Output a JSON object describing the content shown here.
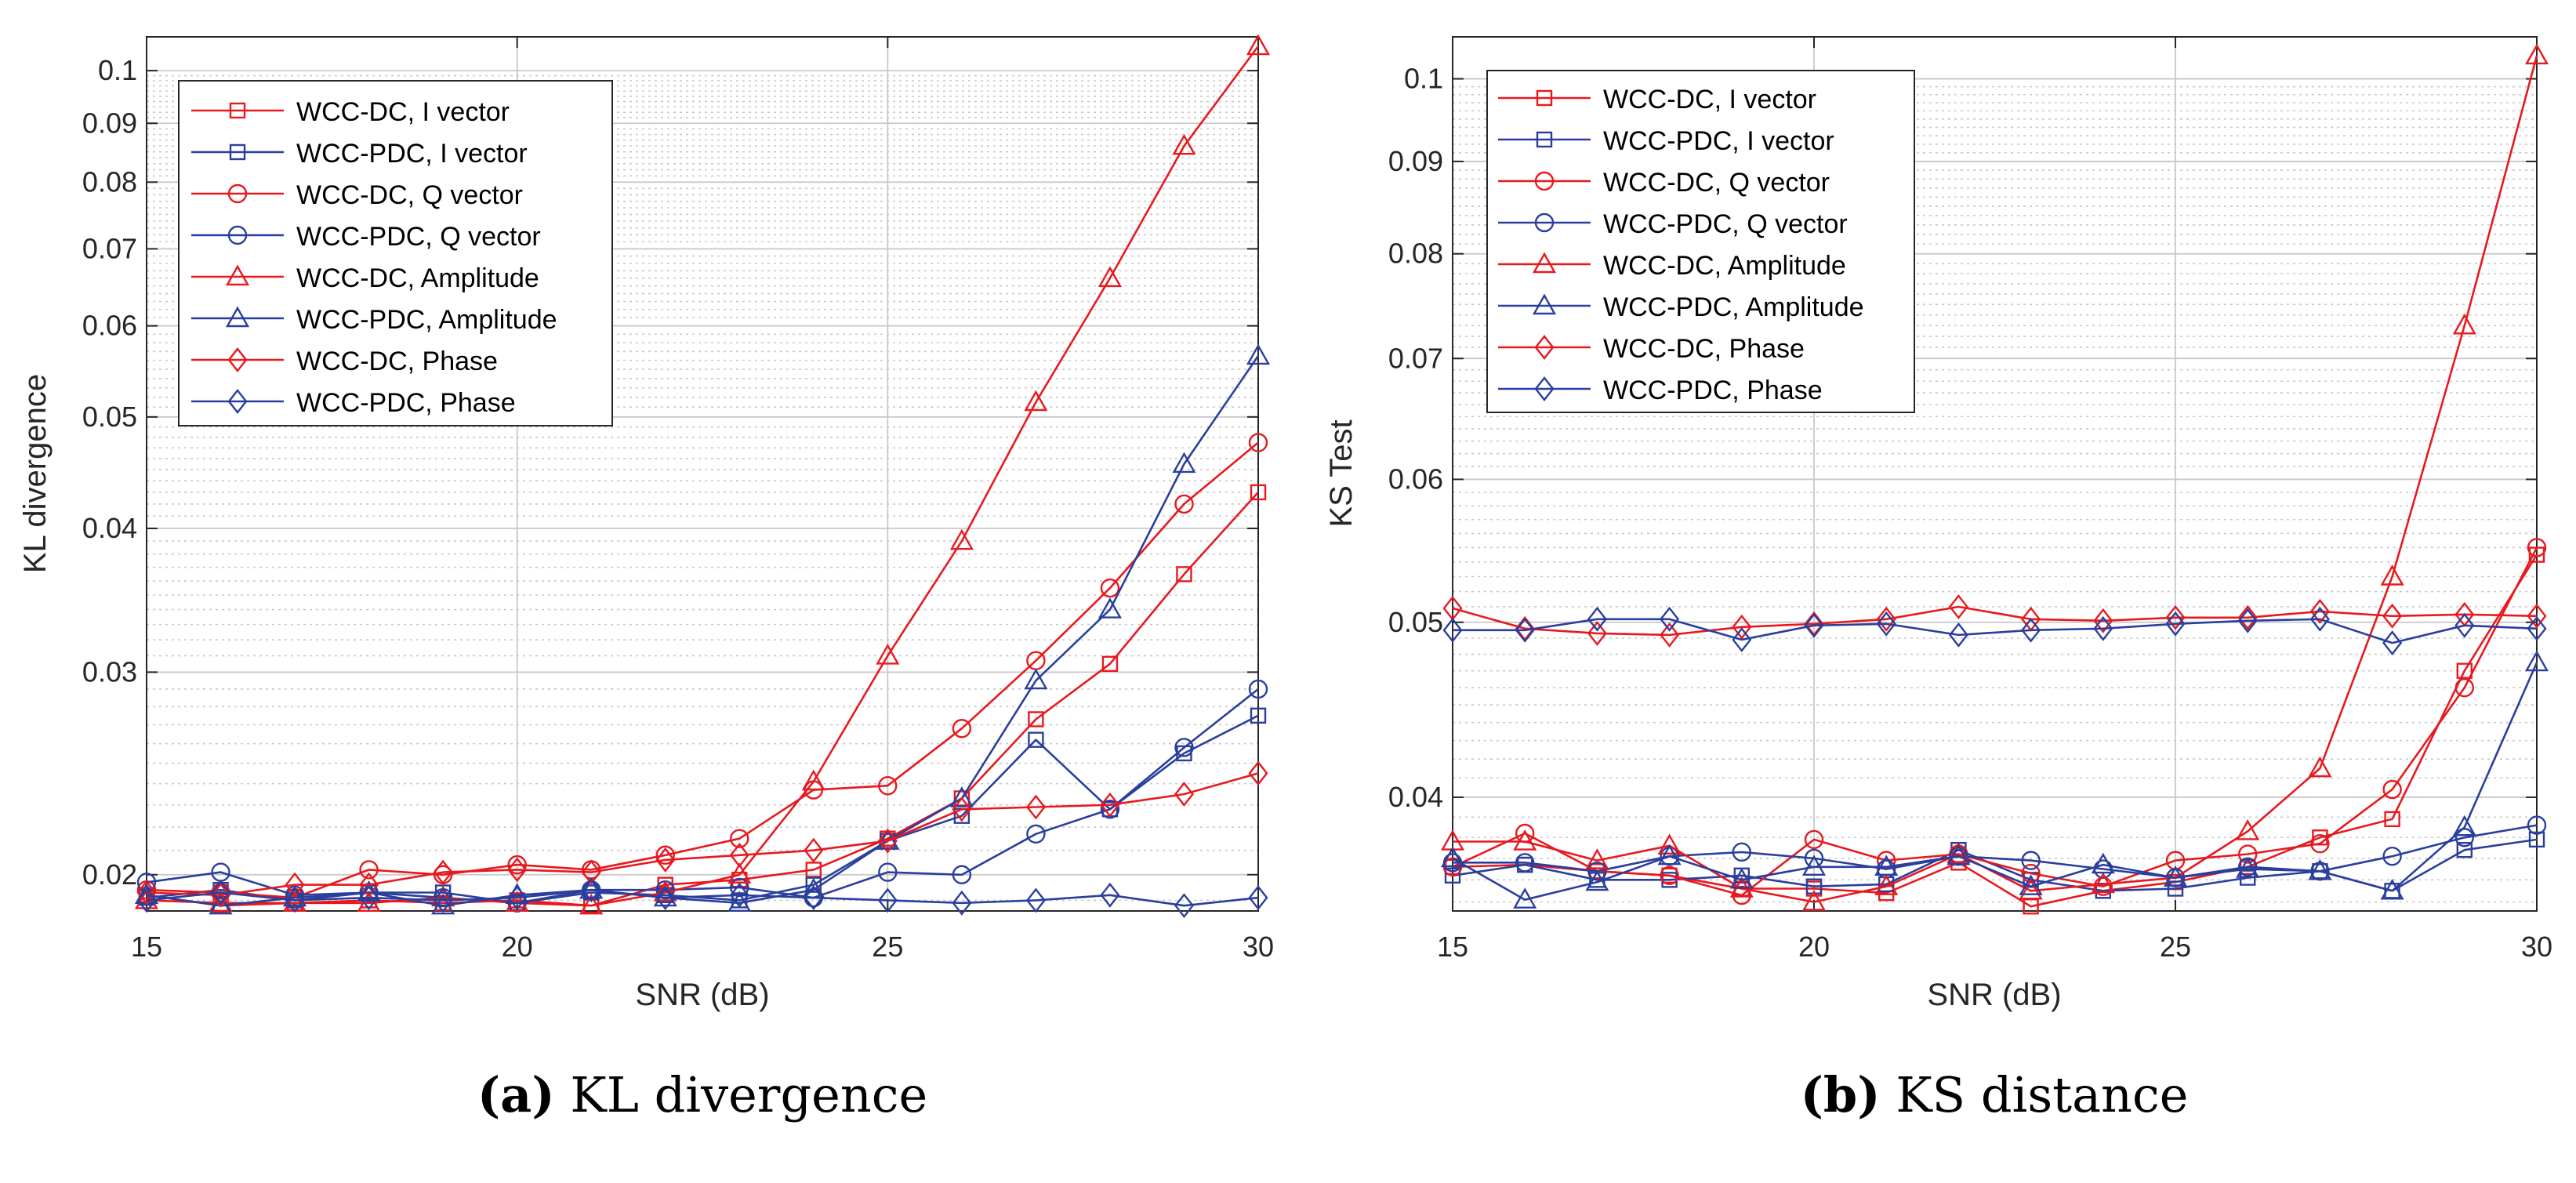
{
  "colors": {
    "dc": "#e8191e",
    "pdc": "#2a3f9d",
    "grid": "#c8c8c8",
    "axis": "#262626"
  },
  "chart_data": [
    {
      "type": "line",
      "id": "kl",
      "yscale": "log",
      "xlabel": "SNR (dB)",
      "ylabel": "KL divergence",
      "xlim": [
        15,
        30
      ],
      "ylim": [
        0.0186,
        0.107
      ],
      "xticks": [
        15,
        20,
        25,
        30
      ],
      "yticks": [
        0.02,
        0.03,
        0.04,
        0.05,
        0.06,
        0.07,
        0.08,
        0.09,
        0.1
      ],
      "ytick_labels": [
        "0.02",
        "0.03",
        "0.04",
        "0.05",
        "0.06",
        "0.07",
        "0.08",
        "0.09",
        "0.1"
      ],
      "legend_position": "top-left",
      "caption_letter": "(a)",
      "caption_text": "KL divergence",
      "x": [
        15,
        16,
        17,
        18,
        19,
        20,
        21,
        22,
        23,
        24,
        25,
        26,
        27,
        28,
        29,
        30
      ],
      "series": [
        {
          "name": "WCC-DC, I vector",
          "color": "dc",
          "marker": "square",
          "values": [
            0.0192,
            0.0188,
            0.0189,
            0.019,
            0.0189,
            0.019,
            0.0188,
            0.0196,
            0.0198,
            0.0202,
            0.0215,
            0.0233,
            0.0273,
            0.0305,
            0.0365,
            0.043
          ]
        },
        {
          "name": "WCC-PDC, I vector",
          "color": "pdc",
          "marker": "square",
          "values": [
            0.0191,
            0.0194,
            0.019,
            0.0193,
            0.0193,
            0.0189,
            0.0193,
            0.0192,
            0.019,
            0.0196,
            0.0214,
            0.0225,
            0.0262,
            0.0228,
            0.0255,
            0.0275
          ]
        },
        {
          "name": "WCC-DC, Q vector",
          "color": "dc",
          "marker": "circle",
          "values": [
            0.0194,
            0.0193,
            0.0191,
            0.0202,
            0.02,
            0.0204,
            0.0202,
            0.0208,
            0.0215,
            0.0237,
            0.0239,
            0.0268,
            0.0307,
            0.0355,
            0.042,
            0.0475
          ]
        },
        {
          "name": "WCC-PDC, Q vector",
          "color": "pdc",
          "marker": "circle",
          "values": [
            0.0197,
            0.0201,
            0.0192,
            0.0193,
            0.0191,
            0.0189,
            0.0194,
            0.0194,
            0.0195,
            0.0191,
            0.0201,
            0.02,
            0.0217,
            0.0228,
            0.0258,
            0.029
          ]
        },
        {
          "name": "WCC-DC, Amplitude",
          "color": "dc",
          "marker": "triangle",
          "values": [
            0.019,
            0.0189,
            0.0189,
            0.0189,
            0.0191,
            0.0189,
            0.0188,
            0.0193,
            0.02,
            0.0241,
            0.031,
            0.039,
            0.0515,
            0.066,
            0.086,
            0.105
          ]
        },
        {
          "name": "WCC-PDC, Amplitude",
          "color": "pdc",
          "marker": "triangle",
          "values": [
            0.0192,
            0.0188,
            0.0191,
            0.0193,
            0.0188,
            0.0192,
            0.0194,
            0.0191,
            0.0189,
            0.0194,
            0.0214,
            0.0233,
            0.0295,
            0.034,
            0.0455,
            0.0565
          ]
        },
        {
          "name": "WCC-DC, Phase",
          "color": "dc",
          "marker": "diamond",
          "values": [
            0.0193,
            0.0192,
            0.0196,
            0.0196,
            0.0201,
            0.0202,
            0.0201,
            0.0206,
            0.0208,
            0.021,
            0.0214,
            0.0228,
            0.0229,
            0.023,
            0.0235,
            0.0245
          ]
        },
        {
          "name": "WCC-PDC, Phase",
          "color": "pdc",
          "marker": "diamond",
          "values": [
            0.019,
            0.0193,
            0.019,
            0.0191,
            0.019,
            0.0191,
            0.0194,
            0.0191,
            0.0192,
            0.0191,
            0.019,
            0.0189,
            0.019,
            0.0192,
            0.0188,
            0.0191
          ]
        }
      ]
    },
    {
      "type": "line",
      "id": "ks",
      "yscale": "log",
      "xlabel": "SNR (dB)",
      "ylabel": "KS Test",
      "xlim": [
        15,
        30
      ],
      "ylim": [
        0.0346,
        0.1055
      ],
      "xticks": [
        15,
        20,
        25,
        30
      ],
      "yticks": [
        0.04,
        0.05,
        0.06,
        0.07,
        0.08,
        0.09,
        0.1
      ],
      "ytick_labels": [
        "0.04",
        "0.05",
        "0.06",
        "0.07",
        "0.08",
        "0.09",
        "0.1"
      ],
      "legend_position": "top-left",
      "caption_letter": "(b)",
      "caption_text": "KS distance",
      "x": [
        15,
        16,
        17,
        18,
        19,
        20,
        21,
        22,
        23,
        24,
        25,
        26,
        27,
        28,
        29,
        30
      ],
      "series": [
        {
          "name": "WCC-DC, I vector",
          "color": "dc",
          "marker": "square",
          "values": [
            0.0366,
            0.0367,
            0.0364,
            0.0362,
            0.0356,
            0.0356,
            0.0354,
            0.0368,
            0.0348,
            0.0355,
            0.0359,
            0.0366,
            0.038,
            0.0389,
            0.047,
            0.0545
          ]
        },
        {
          "name": "WCC-PDC, I vector",
          "color": "pdc",
          "marker": "square",
          "values": [
            0.0362,
            0.0367,
            0.036,
            0.036,
            0.0362,
            0.0357,
            0.0358,
            0.0374,
            0.036,
            0.0355,
            0.0356,
            0.0361,
            0.0364,
            0.0355,
            0.0374,
            0.0379
          ]
        },
        {
          "name": "WCC-DC, Q vector",
          "color": "dc",
          "marker": "circle",
          "values": [
            0.0366,
            0.0382,
            0.0364,
            0.0362,
            0.0353,
            0.0379,
            0.0369,
            0.0372,
            0.0363,
            0.0357,
            0.0369,
            0.0372,
            0.0377,
            0.0404,
            0.046,
            0.055
          ]
        },
        {
          "name": "WCC-PDC, Q vector",
          "color": "pdc",
          "marker": "circle",
          "values": [
            0.0368,
            0.0368,
            0.0364,
            0.0371,
            0.0373,
            0.037,
            0.0365,
            0.0371,
            0.0369,
            0.0365,
            0.0361,
            0.0366,
            0.0364,
            0.0371,
            0.038,
            0.0386
          ]
        },
        {
          "name": "WCC-DC, Amplitude",
          "color": "dc",
          "marker": "triangle",
          "values": [
            0.0378,
            0.0378,
            0.0369,
            0.0376,
            0.0356,
            0.035,
            0.0357,
            0.0372,
            0.0355,
            0.0358,
            0.0361,
            0.0383,
            0.0415,
            0.053,
            0.073,
            0.103
          ]
        },
        {
          "name": "WCC-PDC, Amplitude",
          "color": "pdc",
          "marker": "triangle",
          "values": [
            0.037,
            0.0351,
            0.0359,
            0.0371,
            0.036,
            0.0366,
            0.0366,
            0.0371,
            0.0357,
            0.0367,
            0.0361,
            0.0365,
            0.0364,
            0.0355,
            0.0385,
            0.0475
          ]
        },
        {
          "name": "WCC-DC, Phase",
          "color": "dc",
          "marker": "diamond",
          "values": [
            0.0509,
            0.0496,
            0.0493,
            0.0492,
            0.0497,
            0.0499,
            0.0502,
            0.051,
            0.0502,
            0.0501,
            0.0503,
            0.0503,
            0.0507,
            0.0504,
            0.0505,
            0.0504
          ]
        },
        {
          "name": "WCC-PDC, Phase",
          "color": "pdc",
          "marker": "diamond",
          "values": [
            0.0495,
            0.0495,
            0.0502,
            0.0502,
            0.0489,
            0.0498,
            0.0499,
            0.0492,
            0.0495,
            0.0496,
            0.0499,
            0.0501,
            0.0502,
            0.0487,
            0.0498,
            0.0496
          ]
        }
      ]
    }
  ]
}
